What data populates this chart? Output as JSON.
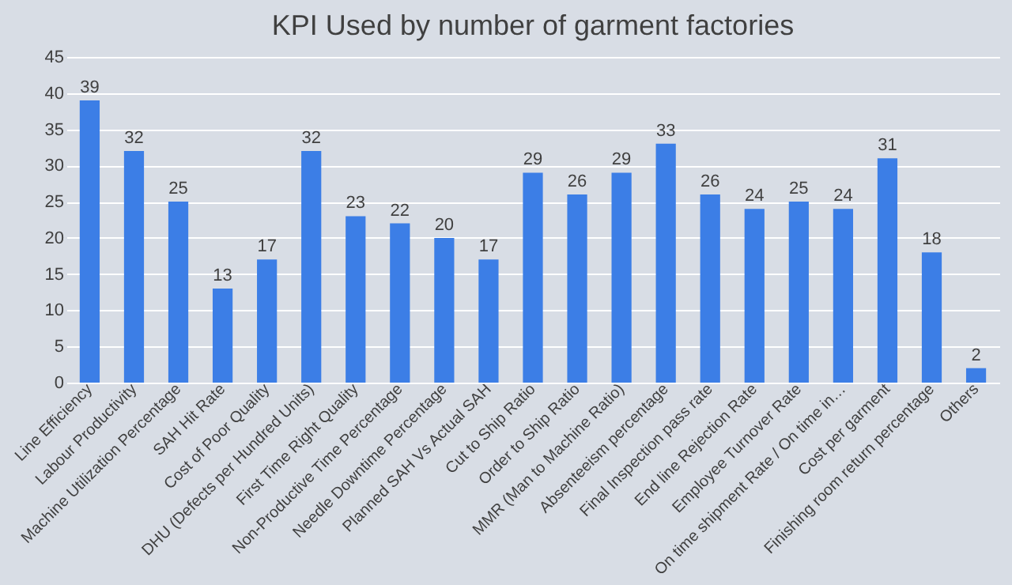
{
  "chart_data": {
    "type": "bar",
    "title": "KPI Used by number of garment factories",
    "categories": [
      "Line Efficiency",
      "Labour Productivity",
      "Machine Utilization Percentage",
      "SAH Hit Rate",
      "Cost of Poor Quality",
      "DHU (Defects per Hundred Units)",
      "First Time Right Quality",
      "Non-Productive Time Percentage",
      "Needle Downtime Percentage",
      "Planned SAH Vs Actual SAH",
      "Cut to Ship Ratio",
      "Order to Ship Ratio",
      "MMR (Man to Machine Ratio)",
      "Absenteeism percentage",
      "Final Inspection pass rate",
      "End line Rejection Rate",
      "Employee Turnover Rate",
      "On time shipment Rate / On time in…",
      "Cost per garment",
      "Finishing room return percentage",
      "Others"
    ],
    "values": [
      39,
      32,
      25,
      13,
      17,
      32,
      23,
      22,
      20,
      17,
      29,
      26,
      29,
      33,
      26,
      24,
      25,
      24,
      31,
      18,
      2
    ],
    "color": "#3c7ee6",
    "ylim": [
      0,
      45
    ],
    "yticks": [
      0,
      5,
      10,
      15,
      20,
      25,
      30,
      35,
      40,
      45
    ],
    "grid": "y",
    "data_labels": true
  }
}
